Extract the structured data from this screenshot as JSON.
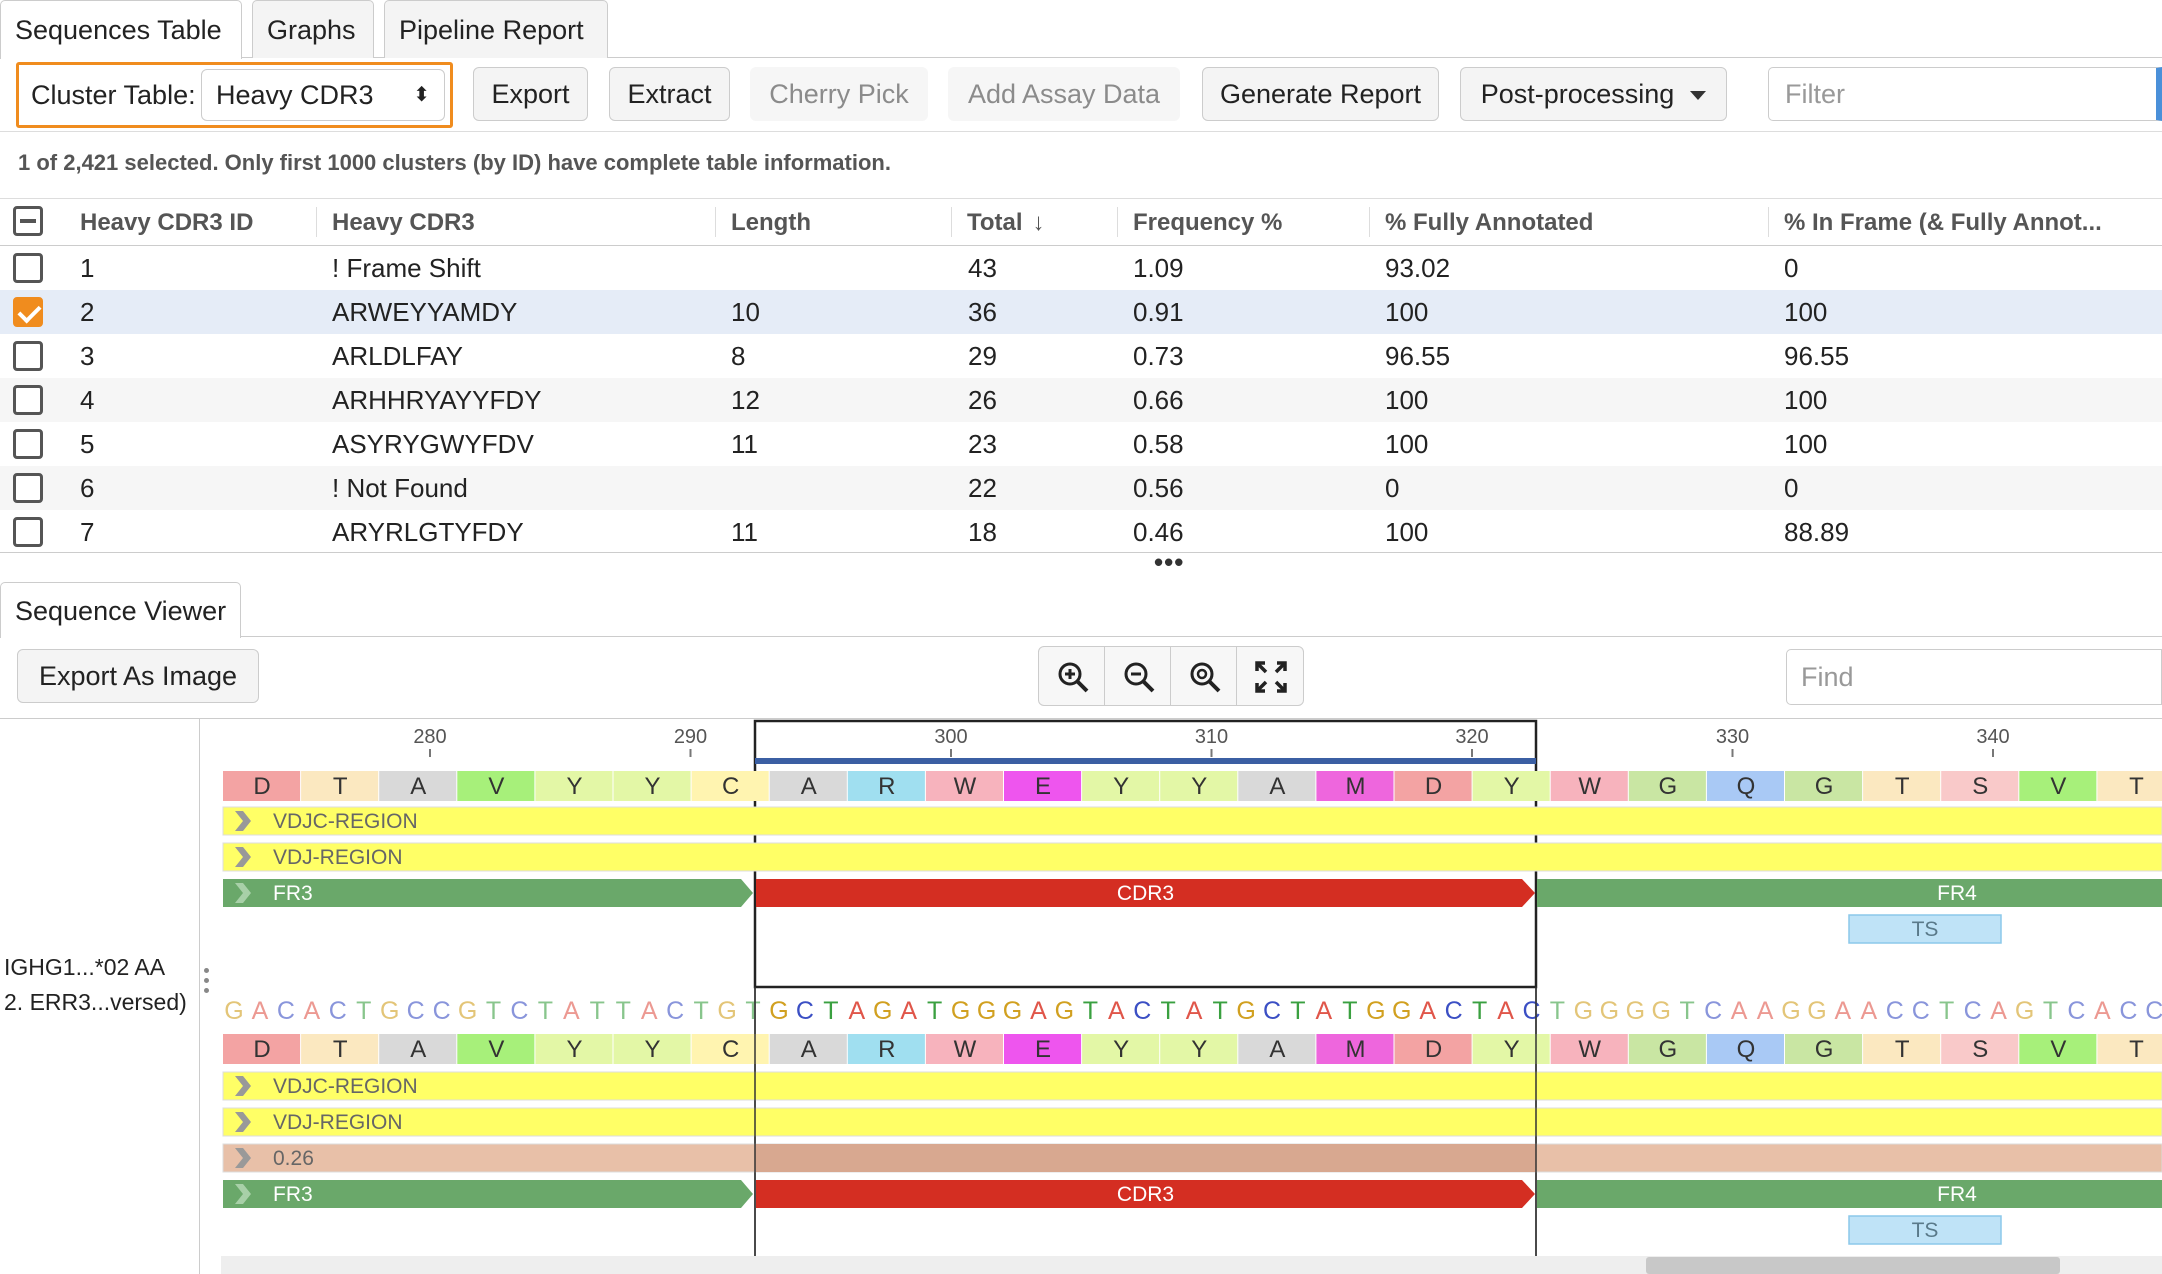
{
  "tabs": [
    "Sequences Table",
    "Graphs",
    "Pipeline Report"
  ],
  "toolbar": {
    "cluster_label": "Cluster Table:",
    "cluster_value": "Heavy CDR3",
    "export": "Export",
    "extract": "Extract",
    "cherry_pick": "Cherry Pick",
    "add_assay": "Add Assay Data",
    "generate_report": "Generate Report",
    "post_processing": "Post-processing",
    "filter_placeholder": "Filter"
  },
  "status": "1 of 2,421 selected. Only first 1000 clusters (by ID) have complete table information.",
  "table": {
    "columns": [
      "Heavy CDR3 ID",
      "Heavy CDR3",
      "Length",
      "Total",
      "Frequency %",
      "% Fully Annotated",
      "% In Frame (& Fully Annot..."
    ],
    "sort_column": "Total",
    "rows": [
      {
        "checked": false,
        "id": "1",
        "cdr3": "! Frame Shift",
        "length": "",
        "total": "43",
        "freq": "1.09",
        "fully": "93.02",
        "inframe": "0"
      },
      {
        "checked": true,
        "id": "2",
        "cdr3": "ARWEYYAMDY",
        "length": "10",
        "total": "36",
        "freq": "0.91",
        "fully": "100",
        "inframe": "100"
      },
      {
        "checked": false,
        "id": "3",
        "cdr3": "ARLDLFAY",
        "length": "8",
        "total": "29",
        "freq": "0.73",
        "fully": "96.55",
        "inframe": "96.55"
      },
      {
        "checked": false,
        "id": "4",
        "cdr3": "ARHHRYAYYFDY",
        "length": "12",
        "total": "26",
        "freq": "0.66",
        "fully": "100",
        "inframe": "100"
      },
      {
        "checked": false,
        "id": "5",
        "cdr3": "ASYRYGWYFDV",
        "length": "11",
        "total": "23",
        "freq": "0.58",
        "fully": "100",
        "inframe": "100"
      },
      {
        "checked": false,
        "id": "6",
        "cdr3": "! Not Found",
        "length": "",
        "total": "22",
        "freq": "0.56",
        "fully": "0",
        "inframe": "0"
      },
      {
        "checked": false,
        "id": "7",
        "cdr3": "ARYRLGTYFDY",
        "length": "11",
        "total": "18",
        "freq": "0.46",
        "fully": "100",
        "inframe": "88.89"
      }
    ]
  },
  "viewer": {
    "tab": "Sequence Viewer",
    "export_image": "Export As Image",
    "find_placeholder": "Find",
    "zoom_icons": [
      "zoom-in-icon",
      "zoom-out-icon",
      "zoom-reset-icon",
      "fit-to-window-icon"
    ],
    "sequence_names": [
      "IGHG1...*02 AA",
      "2. ERR3...versed)"
    ],
    "ruler": [
      "280",
      "290",
      "300",
      "310",
      "320",
      "330",
      "340"
    ],
    "amino_acids": [
      "D",
      "T",
      "A",
      "V",
      "Y",
      "Y",
      "C",
      "A",
      "R",
      "W",
      "E",
      "Y",
      "Y",
      "A",
      "M",
      "D",
      "Y",
      "W",
      "G",
      "Q",
      "G",
      "T",
      "S",
      "V",
      "T"
    ],
    "aa_colors": {
      "D": "#f3a3a3",
      "T": "#fbe8c0",
      "A": "#d9d9d9",
      "V": "#a7f07a",
      "Y": "#e3f7a6",
      "C": "#fff4b0",
      "R": "#a0dff0",
      "W": "#f7b3bd",
      "E": "#ee55ee",
      "M": "#ee66dd",
      "G": "#c9e6a3",
      "Q": "#a9c9f5",
      "S": "#f9c9c9"
    },
    "dna": "GACACTGCCGTCTATTACTGTGCTAGATGGGAGTACTATGCTATGGACTACTGGGGTCAAGGAACCTCAGTCACC",
    "nt_colors": {
      "A": "#e0564a",
      "C": "#3b4fc4",
      "G": "#d1a020",
      "T": "#3aa040"
    },
    "track1_labels": [
      "VDJC-REGION",
      "VDJ-REGION"
    ],
    "track2_labels": [
      "VDJC-REGION",
      "VDJ-REGION",
      "0.26"
    ],
    "segments": {
      "fr3": "FR3",
      "cdr3": "CDR3",
      "fr4": "FR4",
      "ts": "TS"
    },
    "colors": {
      "fr": "#6aa86a",
      "cdr3": "#d42e22",
      "region": "#ffff66",
      "identity": "#e8c0a8",
      "selection": "#3b5fa3"
    }
  }
}
